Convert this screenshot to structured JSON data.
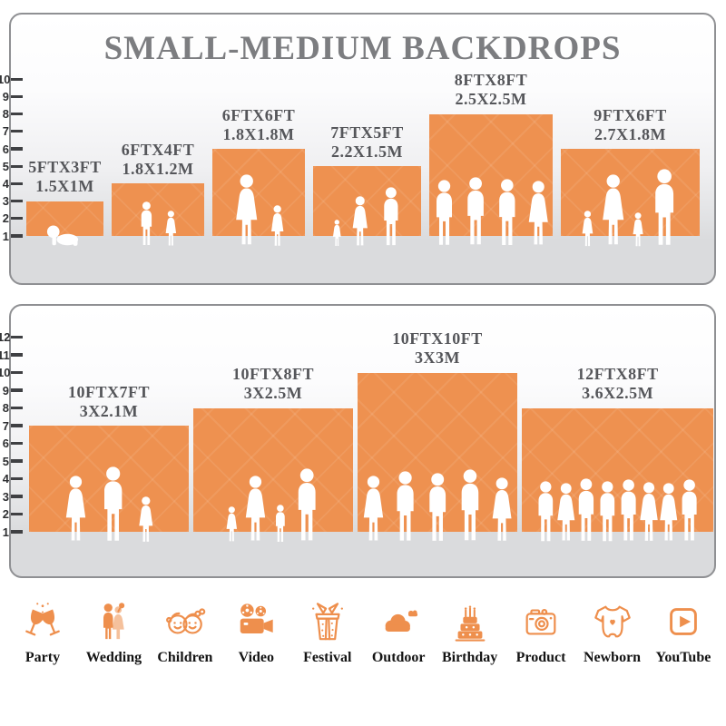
{
  "title": "SMALL-MEDIUM BACKDROPS",
  "colors": {
    "backdrop_orange": "#EE9150",
    "icon_orange": "#EE8F4D",
    "title_gray": "#7C7D80",
    "label_gray": "#55565A",
    "floor_gray": "#DADBDD",
    "ruler_dark": "#3F4043"
  },
  "panels": [
    {
      "name": "small-medium-backdrops",
      "ruler": {
        "from": 1,
        "to": 10
      },
      "items": [
        {
          "label_ft": "5FTX3FT",
          "label_m": "1.5X1M",
          "w_ft": 5,
          "h_ft": 3,
          "figures": [
            {
              "t": "baby",
              "h": 0.68
            }
          ]
        },
        {
          "label_ft": "6FTX4FT",
          "label_m": "1.8X1.2M",
          "w_ft": 6,
          "h_ft": 4,
          "figures": [
            {
              "t": "boy",
              "h": 0.86
            },
            {
              "t": "girl",
              "h": 0.69
            }
          ]
        },
        {
          "label_ft": "6FTX6FT",
          "label_m": "1.8X1.8M",
          "w_ft": 6,
          "h_ft": 6,
          "figures": [
            {
              "t": "woman",
              "h": 0.83
            },
            {
              "t": "girl",
              "h": 0.48
            }
          ]
        },
        {
          "label_ft": "7FTX5FT",
          "label_m": "2.2X1.5M",
          "w_ft": 7,
          "h_ft": 5,
          "figures": [
            {
              "t": "girl",
              "h": 0.39
            },
            {
              "t": "woman",
              "h": 0.73
            },
            {
              "t": "man",
              "h": 0.86
            }
          ]
        },
        {
          "label_ft": "8FTX8FT",
          "label_m": "2.5X2.5M",
          "w_ft": 8,
          "h_ft": 8,
          "figures": [
            {
              "t": "man",
              "h": 0.55
            },
            {
              "t": "man",
              "h": 0.57
            },
            {
              "t": "man",
              "h": 0.56
            },
            {
              "t": "woman",
              "h": 0.54
            }
          ]
        },
        {
          "label_ft": "9FTX6FT",
          "label_m": "2.7X1.8M",
          "w_ft": 9,
          "h_ft": 6,
          "figures": [
            {
              "t": "girl",
              "h": 0.42
            },
            {
              "t": "woman",
              "h": 0.83
            },
            {
              "t": "girl",
              "h": 0.4
            },
            {
              "t": "man",
              "h": 0.9
            }
          ]
        }
      ]
    },
    {
      "name": "large-backdrops",
      "ruler": {
        "from": 1,
        "to": 12
      },
      "items": [
        {
          "label_ft": "10FTX7FT",
          "label_m": "3X2.1M",
          "w_ft": 10,
          "h_ft": 7,
          "figures": [
            {
              "t": "woman",
              "h": 0.63
            },
            {
              "t": "man",
              "h": 0.72
            },
            {
              "t": "girl",
              "h": 0.44
            }
          ]
        },
        {
          "label_ft": "10FTX8FT",
          "label_m": "3X2.5M",
          "w_ft": 10,
          "h_ft": 8,
          "figures": [
            {
              "t": "girl",
              "h": 0.29
            },
            {
              "t": "woman",
              "h": 0.54
            },
            {
              "t": "boy",
              "h": 0.31
            },
            {
              "t": "man",
              "h": 0.6
            }
          ]
        },
        {
          "label_ft": "10FTX10FT",
          "label_m": "3X3M",
          "w_ft": 10,
          "h_ft": 10,
          "figures": [
            {
              "t": "woman",
              "h": 0.42
            },
            {
              "t": "man",
              "h": 0.45
            },
            {
              "t": "man",
              "h": 0.44
            },
            {
              "t": "man",
              "h": 0.46
            },
            {
              "t": "woman",
              "h": 0.41
            }
          ]
        },
        {
          "label_ft": "12FTX8FT",
          "label_m": "3.6X2.5M",
          "w_ft": 12,
          "h_ft": 8,
          "figures": [
            {
              "t": "man",
              "h": 0.5
            },
            {
              "t": "woman",
              "h": 0.48
            },
            {
              "t": "man",
              "h": 0.52
            },
            {
              "t": "man",
              "h": 0.5
            },
            {
              "t": "man",
              "h": 0.51
            },
            {
              "t": "woman",
              "h": 0.49
            },
            {
              "t": "woman",
              "h": 0.48
            },
            {
              "t": "man",
              "h": 0.51
            }
          ]
        }
      ]
    }
  ],
  "categories": [
    {
      "label": "Party",
      "icon": "party-glasses-icon"
    },
    {
      "label": "Wedding",
      "icon": "wedding-couple-icon"
    },
    {
      "label": "Children",
      "icon": "children-faces-icon"
    },
    {
      "label": "Video",
      "icon": "video-camera-icon"
    },
    {
      "label": "Festival",
      "icon": "festival-gift-icon"
    },
    {
      "label": "Outdoor",
      "icon": "outdoor-clouds-icon"
    },
    {
      "label": "Birthday",
      "icon": "birthday-cake-icon"
    },
    {
      "label": "Product",
      "icon": "product-camera-icon"
    },
    {
      "label": "Newborn",
      "icon": "newborn-onesie-icon"
    },
    {
      "label": "YouTube",
      "icon": "youtube-play-icon"
    }
  ]
}
